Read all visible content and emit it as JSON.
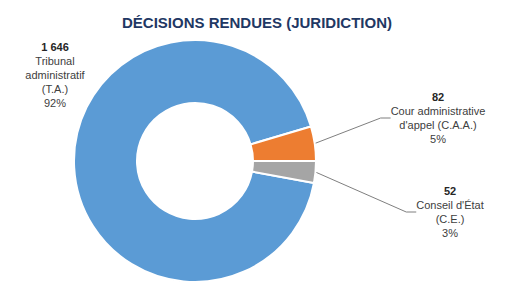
{
  "chart_data": {
    "type": "donut",
    "title": "DÉCISIONS RENDUES (JURIDICTION)",
    "categories": [
      "Tribunal\nadministratif\n(T.A.)",
      "Cour administrative\nd'appel (C.A.A.)",
      "Conseil d'État\n(C.E.)"
    ],
    "values": [
      1646,
      82,
      52
    ],
    "value_labels": [
      "1 646",
      "82",
      "52"
    ],
    "percent_labels": [
      "92%",
      "5%",
      "3%"
    ],
    "colors": [
      "#5b9bd5",
      "#ed7d31",
      "#a5a5a5"
    ],
    "data_labels": true
  }
}
